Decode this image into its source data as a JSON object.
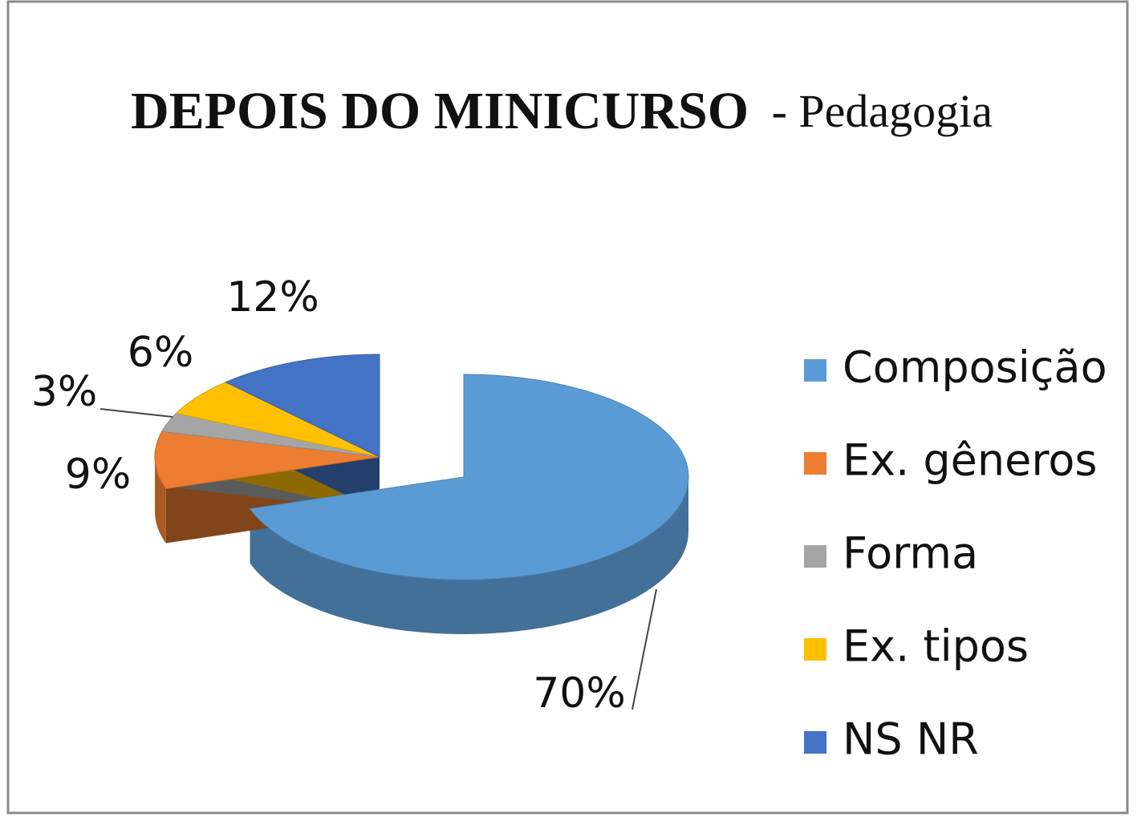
{
  "chart_data": {
    "type": "pie",
    "title": "DEPOIS DO MINICURSO",
    "subtitle": "- Pedagogia",
    "categories": [
      "Composição",
      "Ex. gêneros",
      "Forma",
      "Ex. tipos",
      "NS NR"
    ],
    "values": [
      70,
      9,
      3,
      6,
      12
    ],
    "value_labels": [
      "70%",
      "9%",
      "3%",
      "6%",
      "12%"
    ],
    "colors": [
      "#5b9bd5",
      "#ed7d31",
      "#a5a5a5",
      "#ffc000",
      "#4472c4"
    ],
    "legend": "right"
  }
}
